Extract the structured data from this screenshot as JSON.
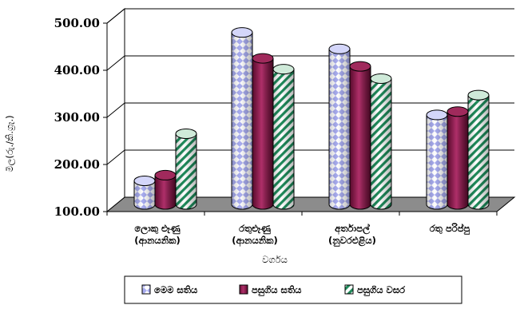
{
  "chart_data": {
    "type": "bar",
    "title": "",
    "xlabel": "වර්ගය",
    "ylabel": "මිල(රු./කි.ග්‍රෑ.)",
    "ylim": [
      100,
      500
    ],
    "yticks": [
      "100.00",
      "200.00",
      "300.00",
      "400.00",
      "500.00"
    ],
    "grid": true,
    "legend_position": "bottom",
    "categories": [
      [
        "ලොකු ළූණු",
        "(ආනයනික)"
      ],
      [
        "රතුළූණු",
        "(ආනයනික)"
      ],
      [
        "අර්තාපල්",
        "(නුවරඑළිය)"
      ],
      [
        "රතු පරිප්පු"
      ]
    ],
    "series": [
      {
        "name": "මෙම සතිය",
        "values": [
          150,
          465,
          430,
          290
        ],
        "color": "#b0b4f0",
        "pattern": "diamond"
      },
      {
        "name": "පසුගිය සතිය",
        "values": [
          162,
          410,
          393,
          297
        ],
        "color": "#8b1a4a",
        "pattern": "solid"
      },
      {
        "name": "පසුගිය වසර",
        "values": [
          250,
          387,
          367,
          332
        ],
        "color": "#1e8a5a",
        "pattern": "stripe"
      }
    ]
  }
}
